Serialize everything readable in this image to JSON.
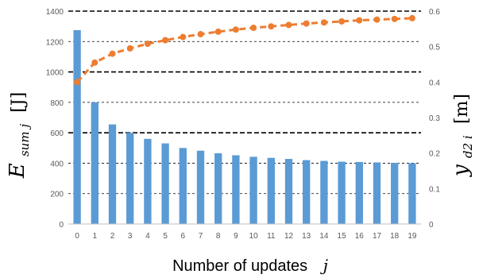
{
  "chart_data": {
    "type": "bar+line",
    "xlabel_text": "Number of updates",
    "xlabel_var": "j",
    "ylabel_left": {
      "base": "E",
      "sub": "sum j",
      "unit": "[J]"
    },
    "ylabel_right": {
      "base": "y",
      "sub": "d2 i",
      "unit": "[m]"
    },
    "categories": [
      "0",
      "1",
      "2",
      "3",
      "4",
      "5",
      "6",
      "7",
      "8",
      "9",
      "10",
      "11",
      "12",
      "13",
      "14",
      "15",
      "16",
      "17",
      "18",
      "19"
    ],
    "ylim_left": [
      0,
      1400
    ],
    "ylim_right": [
      0,
      0.6
    ],
    "left_ticks": [
      "0",
      "200",
      "400",
      "600",
      "800",
      "1000",
      "1200",
      "1400"
    ],
    "right_ticks": [
      "0",
      "0.1",
      "0.2",
      "0.3",
      "0.4",
      "0.5",
      "0.6"
    ],
    "series": [
      {
        "type": "bar",
        "axis": "left",
        "color": "#5b9bd5",
        "values": [
          1275,
          800,
          655,
          600,
          560,
          530,
          500,
          482,
          465,
          452,
          442,
          435,
          428,
          420,
          415,
          410,
          408,
          405,
          402,
          400
        ]
      },
      {
        "type": "line",
        "axis": "right",
        "color": "#ed7d31",
        "dashed": true,
        "values": [
          0.4,
          0.455,
          0.48,
          0.495,
          0.508,
          0.518,
          0.527,
          0.535,
          0.542,
          0.548,
          0.553,
          0.557,
          0.561,
          0.565,
          0.568,
          0.571,
          0.574,
          0.576,
          0.578,
          0.58
        ]
      }
    ],
    "grid": {
      "style": "dashed",
      "horizontal": true,
      "heavy_lines_at_left": [
        600,
        1000,
        1400
      ]
    }
  }
}
